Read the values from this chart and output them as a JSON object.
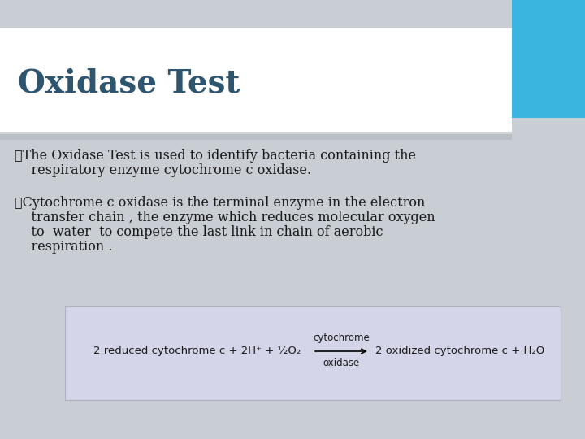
{
  "background_color": "#c9ced5",
  "title": "Oxidase Test",
  "title_color": "#2e5570",
  "title_fontsize": 28,
  "title_bg_color": "#ffffff",
  "blue_square_color": "#3ab5e0",
  "bullet1_line1": "❖The Oxidase Test is used to identify bacteria containing the",
  "bullet1_line2": "    respiratory enzyme cytochrome c oxidase.",
  "bullet2_line1": "❖Cytochrome c oxidase is the terminal enzyme in the electron",
  "bullet2_line2": "    transfer chain , the enzyme which reduces molecular oxygen",
  "bullet2_line3": "    to  water  to compete the last link in chain of aerobic",
  "bullet2_line4": "    respiration .",
  "equation_bg_color": "#d4d5e8",
  "equation_left": "2 reduced cytochrome c + 2H⁺ + ½O₂",
  "equation_arrow_label_top": "cytochrome",
  "equation_arrow_label_bottom": "oxidase",
  "equation_right": "2 oxidized cytochrome c + H₂O",
  "text_color": "#1a1a1a",
  "body_fontsize": 11.5,
  "eq_fontsize": 9.5,
  "eq_label_fontsize": 8.5
}
